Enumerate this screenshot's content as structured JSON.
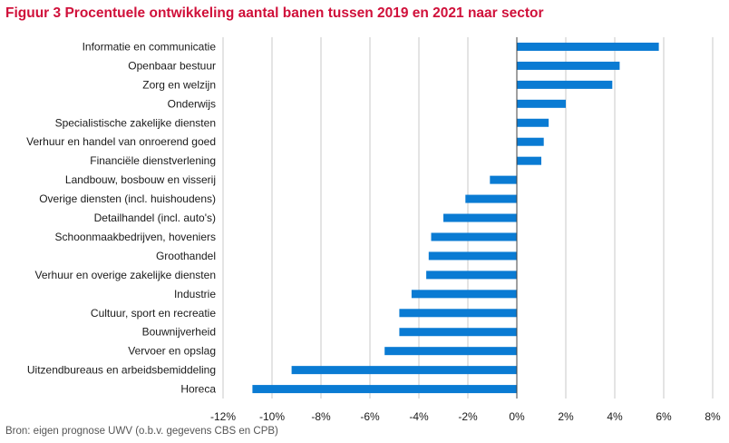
{
  "title": "Figuur 3 Procentuele ontwikkeling aantal banen tussen 2019 en 2021 naar sector",
  "source": "Bron: eigen prognose UWV (o.b.v. gegevens CBS en CPB)",
  "colors": {
    "bar": "#0a7bd3",
    "title": "#d0103a",
    "grid": "#c8c8c8",
    "axis": "#404040"
  },
  "chart_data": {
    "type": "bar",
    "orientation": "horizontal",
    "categories": [
      "Informatie en communicatie",
      "Openbaar bestuur",
      "Zorg en welzijn",
      "Onderwijs",
      "Specialistische zakelijke diensten",
      "Verhuur en handel van onroerend goed",
      "Financiële dienstverlening",
      "Landbouw, bosbouw en visserij",
      "Overige diensten (incl. huishoudens)",
      "Detailhandel (incl. auto's)",
      "Schoonmaakbedrijven, hoveniers",
      "Groothandel",
      "Verhuur en overige zakelijke diensten",
      "Industrie",
      "Cultuur, sport en recreatie",
      "Bouwnijverheid",
      "Vervoer en opslag",
      "Uitzendbureaus en arbeidsbemiddeling",
      "Horeca"
    ],
    "values": [
      5.8,
      4.2,
      3.9,
      2.0,
      1.3,
      1.1,
      1.0,
      -1.1,
      -2.1,
      -3.0,
      -3.5,
      -3.6,
      -3.7,
      -4.3,
      -4.8,
      -4.8,
      -5.4,
      -9.2,
      -10.8
    ],
    "xlim": [
      -12,
      8
    ],
    "xticks": [
      -12,
      -10,
      -8,
      -6,
      -4,
      -2,
      0,
      2,
      4,
      6,
      8
    ],
    "xtick_labels": [
      "-12%",
      "-10%",
      "-8%",
      "-6%",
      "-4%",
      "-2%",
      "0%",
      "2%",
      "4%",
      "6%",
      "8%"
    ],
    "grid": "vertical"
  }
}
